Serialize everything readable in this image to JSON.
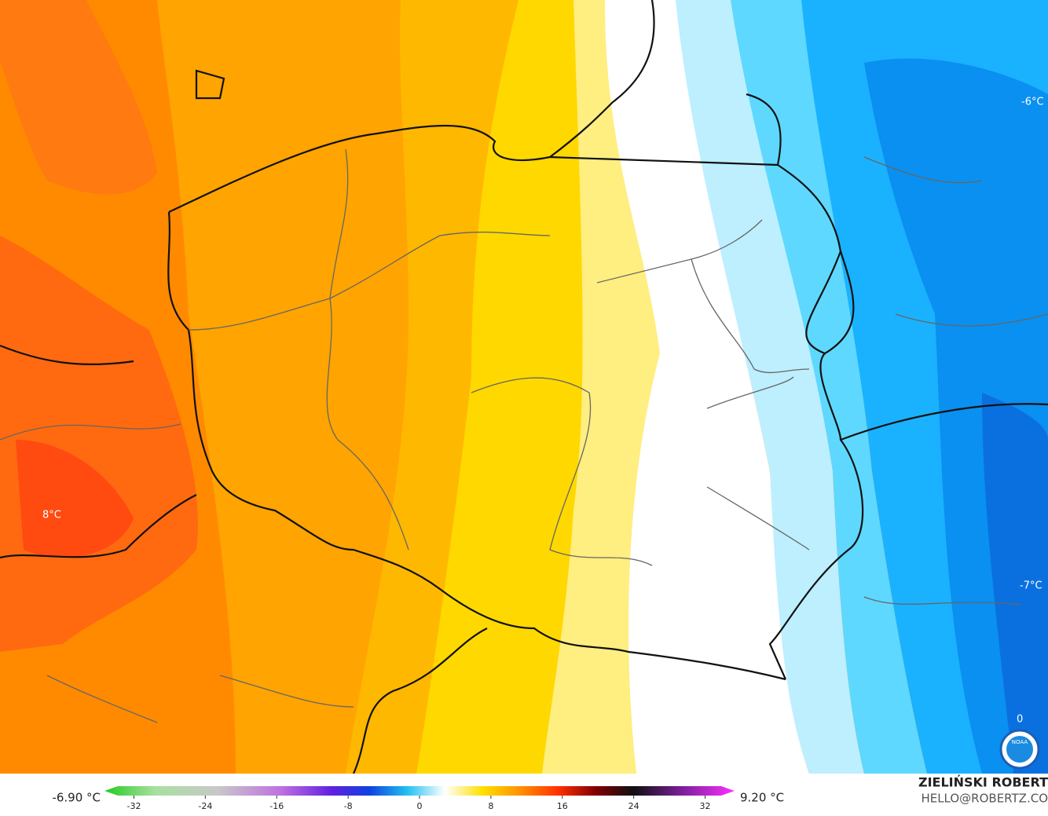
{
  "map": {
    "labels": [
      {
        "text": "8°C"
      },
      {
        "text": "-6°C"
      },
      {
        "text": "-7°C"
      },
      {
        "text": "0"
      }
    ]
  },
  "legend": {
    "min_label": "-6.90 °C",
    "max_label": "9.20 °C",
    "lim": [
      -35.3,
      35.3
    ],
    "ticks": [
      -32,
      -24,
      -16,
      -8,
      0,
      8,
      16,
      24,
      32
    ]
  },
  "credits": {
    "name": "ZIELIŃSKI ROBERT",
    "contact": "HELLO@ROBERTZ.CO"
  }
}
